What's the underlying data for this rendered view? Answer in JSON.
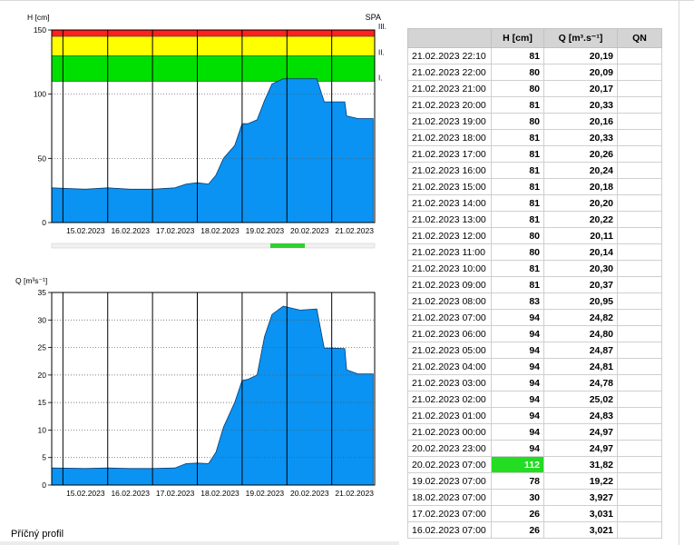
{
  "chart_data": [
    {
      "type": "area",
      "ylabel": "H [cm]",
      "ylim": [
        0,
        150
      ],
      "yticks": [
        0,
        50,
        100,
        150
      ],
      "xlim": [
        "2023-02-14T18:00",
        "2023-02-21T23:00"
      ],
      "xticks": [
        "15.02.2023",
        "16.02.2023",
        "17.02.2023",
        "18.02.2023",
        "19.02.2023",
        "20.02.2023",
        "21.02.2023"
      ],
      "grid": "vertical solid, horizontal dotted",
      "color": "#0a93f2",
      "legend": "none",
      "flood_levels": {
        "title": "SPA",
        "bands": [
          {
            "label": "I.",
            "from": 110,
            "to": 130,
            "color": "#00e000"
          },
          {
            "label": "II.",
            "from": 130,
            "to": 145,
            "color": "#ffff00"
          },
          {
            "label": "III.",
            "from": 145,
            "to": 150,
            "color": "#ff2020"
          }
        ]
      },
      "x": [
        "2023-02-14T18:00",
        "2023-02-15T12:00",
        "2023-02-16T00:00",
        "2023-02-16T12:00",
        "2023-02-17T00:00",
        "2023-02-17T12:00",
        "2023-02-17T18:00",
        "2023-02-18T00:00",
        "2023-02-18T06:00",
        "2023-02-18T10:00",
        "2023-02-18T14:00",
        "2023-02-18T20:00",
        "2023-02-19T00:00",
        "2023-02-19T03:00",
        "2023-02-19T08:00",
        "2023-02-19T12:00",
        "2023-02-19T16:00",
        "2023-02-19T22:00",
        "2023-02-20T07:00",
        "2023-02-20T16:00",
        "2023-02-20T20:00",
        "2023-02-21T00:00",
        "2023-02-21T07:00",
        "2023-02-21T08:00",
        "2023-02-21T14:00",
        "2023-02-21T22:10"
      ],
      "values": [
        27,
        26,
        27,
        26,
        26,
        27,
        30,
        31,
        30,
        37,
        50,
        60,
        77,
        77,
        80,
        95,
        108,
        112,
        112,
        112,
        94,
        94,
        94,
        83,
        81,
        81
      ]
    },
    {
      "type": "area",
      "ylabel": "Q [m³s⁻¹]",
      "ylim": [
        0,
        35
      ],
      "yticks": [
        0,
        5,
        10,
        15,
        20,
        25,
        30,
        35
      ],
      "xlim": [
        "2023-02-14T18:00",
        "2023-02-21T23:00"
      ],
      "xticks": [
        "15.02.2023",
        "16.02.2023",
        "17.02.2023",
        "18.02.2023",
        "19.02.2023",
        "20.02.2023",
        "21.02.2023"
      ],
      "grid": "vertical solid, horizontal dotted",
      "color": "#0a93f2",
      "legend": "none",
      "x": [
        "2023-02-14T18:00",
        "2023-02-15T12:00",
        "2023-02-16T00:00",
        "2023-02-16T12:00",
        "2023-02-17T00:00",
        "2023-02-17T12:00",
        "2023-02-17T18:00",
        "2023-02-18T00:00",
        "2023-02-18T06:00",
        "2023-02-18T10:00",
        "2023-02-18T14:00",
        "2023-02-18T20:00",
        "2023-02-19T00:00",
        "2023-02-19T03:00",
        "2023-02-19T08:00",
        "2023-02-19T12:00",
        "2023-02-19T16:00",
        "2023-02-19T22:00",
        "2023-02-20T07:00",
        "2023-02-20T16:00",
        "2023-02-20T20:00",
        "2023-02-21T00:00",
        "2023-02-21T07:00",
        "2023-02-21T08:00",
        "2023-02-21T14:00",
        "2023-02-21T22:10"
      ],
      "values": [
        3.1,
        3.0,
        3.1,
        3.0,
        3.0,
        3.1,
        3.9,
        4.0,
        3.9,
        6.0,
        10.5,
        15.0,
        19.0,
        19.2,
        20.0,
        27.0,
        31.0,
        32.5,
        31.8,
        32.0,
        24.9,
        24.9,
        24.8,
        20.95,
        20.2,
        20.2
      ]
    }
  ],
  "table": {
    "headers": [
      "",
      "H [cm]",
      "Q [m³.s⁻¹]",
      "QN"
    ],
    "rows": [
      [
        "21.02.2023 22:10",
        "81",
        "20,19",
        ""
      ],
      [
        "21.02.2023 22:00",
        "80",
        "20,09",
        ""
      ],
      [
        "21.02.2023 21:00",
        "80",
        "20,17",
        ""
      ],
      [
        "21.02.2023 20:00",
        "81",
        "20,33",
        ""
      ],
      [
        "21.02.2023 19:00",
        "80",
        "20,16",
        ""
      ],
      [
        "21.02.2023 18:00",
        "81",
        "20,33",
        ""
      ],
      [
        "21.02.2023 17:00",
        "81",
        "20,26",
        ""
      ],
      [
        "21.02.2023 16:00",
        "81",
        "20,24",
        ""
      ],
      [
        "21.02.2023 15:00",
        "81",
        "20,18",
        ""
      ],
      [
        "21.02.2023 14:00",
        "81",
        "20,20",
        ""
      ],
      [
        "21.02.2023 13:00",
        "81",
        "20,22",
        ""
      ],
      [
        "21.02.2023 12:00",
        "80",
        "20,11",
        ""
      ],
      [
        "21.02.2023 11:00",
        "80",
        "20,14",
        ""
      ],
      [
        "21.02.2023 10:00",
        "81",
        "20,30",
        ""
      ],
      [
        "21.02.2023 09:00",
        "81",
        "20,37",
        ""
      ],
      [
        "21.02.2023 08:00",
        "83",
        "20,95",
        ""
      ],
      [
        "21.02.2023 07:00",
        "94",
        "24,82",
        ""
      ],
      [
        "21.02.2023 06:00",
        "94",
        "24,80",
        ""
      ],
      [
        "21.02.2023 05:00",
        "94",
        "24,87",
        ""
      ],
      [
        "21.02.2023 04:00",
        "94",
        "24,81",
        ""
      ],
      [
        "21.02.2023 03:00",
        "94",
        "24,78",
        ""
      ],
      [
        "21.02.2023 02:00",
        "94",
        "25,02",
        ""
      ],
      [
        "21.02.2023 01:00",
        "94",
        "24,83",
        ""
      ],
      [
        "21.02.2023 00:00",
        "94",
        "24,97",
        ""
      ],
      [
        "20.02.2023 23:00",
        "94",
        "24,97",
        ""
      ],
      [
        "20.02.2023 07:00",
        "112",
        "31,82",
        ""
      ],
      [
        "19.02.2023 07:00",
        "78",
        "19,22",
        ""
      ],
      [
        "18.02.2023 07:00",
        "30",
        "3,927",
        ""
      ],
      [
        "17.02.2023 07:00",
        "26",
        "3,031",
        ""
      ],
      [
        "16.02.2023 07:00",
        "26",
        "3,021",
        ""
      ]
    ],
    "highlight_row": 25,
    "highlight_color": "#22dd22"
  },
  "footer": {
    "label": "Příčný profil"
  }
}
